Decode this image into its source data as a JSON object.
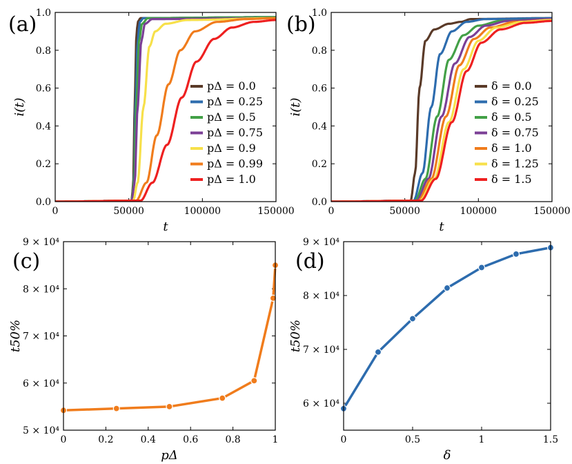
{
  "chart_data": [
    {
      "id": "a",
      "type": "line",
      "panel_label": "(a)",
      "xlabel": "t",
      "ylabel": "i(t)",
      "xlim": [
        0,
        150000
      ],
      "ylim": [
        0,
        1.0
      ],
      "xticks": [
        "0",
        "50000",
        "100000",
        "150000"
      ],
      "yticks": [
        "0.0",
        "0.2",
        "0.4",
        "0.6",
        "0.8",
        "1.0"
      ],
      "legend_position": "lower-right",
      "series": [
        {
          "name": "pΔ = 0.0",
          "legend_label": "pΔ = 0.0",
          "color": "#5a3a28",
          "plateau": 0.975,
          "shape": [
            [
              52000,
              0.005
            ],
            [
              53000,
              0.1
            ],
            [
              54000,
              0.5
            ],
            [
              55000,
              0.85
            ],
            [
              56000,
              0.95
            ],
            [
              58000,
              0.97
            ],
            [
              150000,
              0.975
            ]
          ]
        },
        {
          "name": "pΔ = 0.25",
          "legend_label": "pΔ = 0.25",
          "color": "#2d6cae",
          "shape": [
            [
              52000,
              0.005
            ],
            [
              53500,
              0.1
            ],
            [
              54500,
              0.5
            ],
            [
              56000,
              0.85
            ],
            [
              57500,
              0.95
            ],
            [
              60000,
              0.97
            ],
            [
              150000,
              0.975
            ]
          ]
        },
        {
          "name": "pΔ = 0.5",
          "legend_label": "pΔ = 0.5",
          "color": "#43a047",
          "shape": [
            [
              52000,
              0.005
            ],
            [
              53500,
              0.1
            ],
            [
              55000,
              0.5
            ],
            [
              57000,
              0.85
            ],
            [
              59000,
              0.94
            ],
            [
              63000,
              0.97
            ],
            [
              150000,
              0.975
            ]
          ]
        },
        {
          "name": "pΔ = 0.75",
          "legend_label": "pΔ = 0.75",
          "color": "#7b3f96",
          "shape": [
            [
              52000,
              0.005
            ],
            [
              54000,
              0.1
            ],
            [
              56000,
              0.5
            ],
            [
              58500,
              0.85
            ],
            [
              61000,
              0.94
            ],
            [
              66000,
              0.965
            ],
            [
              150000,
              0.97
            ]
          ]
        },
        {
          "name": "pΔ = 0.9",
          "legend_label": "pΔ = 0.9",
          "color": "#f7e04a",
          "shape": [
            [
              53000,
              0.005
            ],
            [
              56000,
              0.1
            ],
            [
              60000,
              0.5
            ],
            [
              64000,
              0.82
            ],
            [
              68000,
              0.9
            ],
            [
              75000,
              0.94
            ],
            [
              90000,
              0.96
            ],
            [
              150000,
              0.97
            ]
          ]
        },
        {
          "name": "pΔ = 0.99",
          "legend_label": "pΔ = 0.99",
          "color": "#f07c1c",
          "shape": [
            [
              55000,
              0.005
            ],
            [
              62000,
              0.1
            ],
            [
              69000,
              0.35
            ],
            [
              77000,
              0.62
            ],
            [
              85000,
              0.8
            ],
            [
              95000,
              0.9
            ],
            [
              110000,
              0.95
            ],
            [
              130000,
              0.965
            ],
            [
              150000,
              0.97
            ]
          ]
        },
        {
          "name": "pΔ = 1.0",
          "legend_label": "pΔ = 1.0",
          "color": "#ee2020",
          "shape": [
            [
              58000,
              0.005
            ],
            [
              66000,
              0.1
            ],
            [
              76000,
              0.3
            ],
            [
              86000,
              0.55
            ],
            [
              96000,
              0.74
            ],
            [
              108000,
              0.86
            ],
            [
              120000,
              0.92
            ],
            [
              135000,
              0.95
            ],
            [
              150000,
              0.96
            ]
          ]
        }
      ]
    },
    {
      "id": "b",
      "type": "line",
      "panel_label": "(b)",
      "xlabel": "t",
      "ylabel": "i(t)",
      "xlim": [
        0,
        150000
      ],
      "ylim": [
        0,
        1.0
      ],
      "xticks": [
        "0",
        "50000",
        "100000",
        "150000"
      ],
      "yticks": [
        "0.0",
        "0.2",
        "0.4",
        "0.6",
        "0.8",
        "1.0"
      ],
      "legend_position": "lower-right",
      "series": [
        {
          "name": "δ = 0.0",
          "legend_label": "δ = 0.0",
          "color": "#5a3a28",
          "shape": [
            [
              54000,
              0.005
            ],
            [
              57000,
              0.15
            ],
            [
              60000,
              0.6
            ],
            [
              64000,
              0.85
            ],
            [
              70000,
              0.91
            ],
            [
              80000,
              0.94
            ],
            [
              88000,
              0.95
            ],
            [
              95000,
              0.965
            ],
            [
              150000,
              0.97
            ]
          ]
        },
        {
          "name": "δ = 0.25",
          "legend_label": "δ = 0.25",
          "color": "#2d6cae",
          "shape": [
            [
              56000,
              0.005
            ],
            [
              62000,
              0.15
            ],
            [
              68000,
              0.5
            ],
            [
              74000,
              0.78
            ],
            [
              82000,
              0.9
            ],
            [
              92000,
              0.95
            ],
            [
              105000,
              0.965
            ],
            [
              150000,
              0.97
            ]
          ]
        },
        {
          "name": "δ = 0.5",
          "legend_label": "δ = 0.5",
          "color": "#43a047",
          "shape": [
            [
              57000,
              0.005
            ],
            [
              64000,
              0.12
            ],
            [
              72000,
              0.45
            ],
            [
              80000,
              0.75
            ],
            [
              90000,
              0.88
            ],
            [
              100000,
              0.93
            ],
            [
              115000,
              0.955
            ],
            [
              150000,
              0.965
            ]
          ]
        },
        {
          "name": "δ = 0.75",
          "legend_label": "δ = 0.75",
          "color": "#7b3f96",
          "shape": [
            [
              58000,
              0.005
            ],
            [
              66000,
              0.12
            ],
            [
              75000,
              0.45
            ],
            [
              84000,
              0.73
            ],
            [
              94000,
              0.87
            ],
            [
              105000,
              0.93
            ],
            [
              120000,
              0.955
            ],
            [
              150000,
              0.965
            ]
          ]
        },
        {
          "name": "δ = 1.0",
          "legend_label": "δ = 1.0",
          "color": "#f07c1c",
          "shape": [
            [
              59000,
              0.005
            ],
            [
              68000,
              0.12
            ],
            [
              78000,
              0.45
            ],
            [
              87000,
              0.72
            ],
            [
              97000,
              0.86
            ],
            [
              108000,
              0.92
            ],
            [
              125000,
              0.95
            ],
            [
              150000,
              0.96
            ]
          ]
        },
        {
          "name": "δ = 1.25",
          "legend_label": "δ = 1.25",
          "color": "#f7e04a",
          "shape": [
            [
              60000,
              0.005
            ],
            [
              70000,
              0.12
            ],
            [
              80000,
              0.42
            ],
            [
              90000,
              0.7
            ],
            [
              100000,
              0.85
            ],
            [
              112000,
              0.92
            ],
            [
              130000,
              0.95
            ],
            [
              150000,
              0.96
            ]
          ]
        },
        {
          "name": "δ = 1.5",
          "legend_label": "δ = 1.5",
          "color": "#ee2020",
          "shape": [
            [
              61000,
              0.005
            ],
            [
              71000,
              0.12
            ],
            [
              82000,
              0.42
            ],
            [
              92000,
              0.69
            ],
            [
              102000,
              0.84
            ],
            [
              115000,
              0.91
            ],
            [
              132000,
              0.945
            ],
            [
              150000,
              0.955
            ]
          ]
        }
      ]
    },
    {
      "id": "c",
      "type": "line",
      "panel_label": "(c)",
      "xlabel": "pΔ",
      "ylabel": "t50%",
      "xlim": [
        0,
        1.0
      ],
      "ylim": [
        50000,
        90000
      ],
      "xticks": [
        "0",
        "0.2",
        "0.4",
        "0.6",
        "0.8",
        "1"
      ],
      "yticks": [
        "5 × 10⁴",
        "6 × 10⁴",
        "7 × 10⁴",
        "8 × 10⁴",
        "9 × 10⁴"
      ],
      "color": "#f07c1c",
      "x": [
        0.0,
        0.25,
        0.5,
        0.75,
        0.9,
        0.99,
        1.0
      ],
      "values": [
        54200,
        54600,
        55000,
        56800,
        60500,
        78000,
        85000
      ]
    },
    {
      "id": "d",
      "type": "line",
      "panel_label": "(d)",
      "xlabel": "δ",
      "ylabel": "t50%",
      "xlim": [
        0,
        1.5
      ],
      "ylim": [
        55000,
        90000
      ],
      "xticks": [
        "0",
        "0.5",
        "1",
        "1.5"
      ],
      "yticks": [
        "6 × 10⁴",
        "7 × 10⁴",
        "8 × 10⁴",
        "9 × 10⁴"
      ],
      "color": "#2d6cae",
      "x": [
        0.0,
        0.25,
        0.5,
        0.75,
        1.0,
        1.25,
        1.5
      ],
      "values": [
        59000,
        69500,
        75700,
        81400,
        85200,
        87700,
        88900
      ]
    }
  ]
}
